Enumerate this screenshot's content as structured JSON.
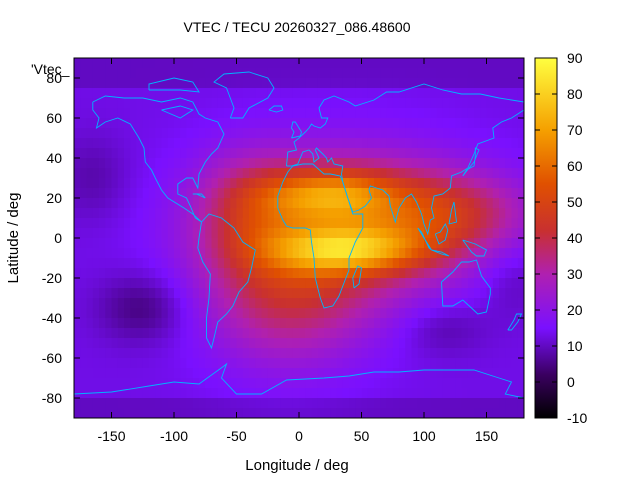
{
  "chart_data": {
    "type": "heatmap",
    "title": "VTEC / TECU 20260327_086.48600",
    "xlabel": "Longitude / deg",
    "ylabel": "Latitude / deg",
    "legend_key": "'Vtec_",
    "xlim": [
      -180,
      180
    ],
    "ylim": [
      -90,
      90
    ],
    "xticks": [
      "-150",
      "-100",
      "-50",
      "0",
      "50",
      "100",
      "150"
    ],
    "xtick_values": [
      -150,
      -100,
      -50,
      0,
      50,
      100,
      150
    ],
    "yticks": [
      "80",
      "60",
      "40",
      "20",
      "0",
      "-20",
      "-40",
      "-60",
      "-80"
    ],
    "ytick_values": [
      80,
      60,
      40,
      20,
      0,
      -20,
      -40,
      -60,
      -80
    ],
    "colorbar": {
      "range": [
        -10,
        90
      ],
      "ticks": [
        "90",
        "80",
        "70",
        "60",
        "50",
        "40",
        "30",
        "20",
        "10",
        "0",
        "-10"
      ],
      "tick_values": [
        90,
        80,
        70,
        60,
        50,
        40,
        30,
        20,
        10,
        0,
        -10
      ]
    },
    "peaks": [
      {
        "lon": 30,
        "lat": 22,
        "value": 80
      },
      {
        "lon": 35,
        "lat": -5,
        "value": 82
      },
      {
        "lon": 120,
        "lat": 15,
        "value": 62
      }
    ],
    "coastline_color": "#00b4ff"
  }
}
